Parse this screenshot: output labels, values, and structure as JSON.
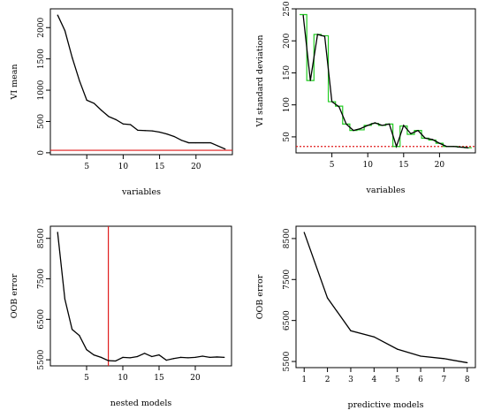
{
  "chart_data": [
    {
      "type": "line",
      "xlabel": "variables",
      "ylabel": "VI mean",
      "xlim": [
        0,
        25
      ],
      "ylim": [
        -30,
        2300
      ],
      "xticks": [
        5,
        10,
        15,
        20
      ],
      "yticks": [
        0,
        500,
        1000,
        1500,
        2000
      ],
      "series": [
        {
          "x": [
            1,
            2,
            3,
            4,
            5,
            6,
            7,
            8,
            9,
            10,
            11,
            12,
            13,
            14,
            15,
            16,
            17,
            18,
            19,
            20,
            21,
            22,
            23,
            24
          ],
          "values": [
            2200,
            1950,
            1520,
            1150,
            840,
            790,
            680,
            580,
            530,
            460,
            450,
            360,
            355,
            350,
            330,
            300,
            260,
            200,
            160,
            160,
            160,
            160,
            110,
            60
          ]
        }
      ],
      "hlines": [
        {
          "y": 40,
          "color": "#e01b1b",
          "style": "solid"
        }
      ]
    },
    {
      "type": "line",
      "xlabel": "variables",
      "ylabel": "VI standard deviation",
      "xlim": [
        0,
        25
      ],
      "ylim": [
        25,
        250
      ],
      "xticks": [
        5,
        10,
        15,
        20
      ],
      "yticks": [
        50,
        100,
        150,
        200,
        250
      ],
      "series": [
        {
          "x": [
            1,
            2,
            3,
            4,
            5,
            6,
            7,
            8,
            9,
            10,
            11,
            12,
            13,
            14,
            15,
            16,
            17,
            18,
            19,
            20,
            21,
            22,
            23,
            24
          ],
          "values": [
            240,
            138,
            210,
            207,
            105,
            97,
            70,
            60,
            63,
            68,
            72,
            68,
            70,
            35,
            68,
            55,
            60,
            48,
            46,
            40,
            35,
            35,
            34,
            33
          ]
        }
      ],
      "step_series": {
        "color": "#22cc22",
        "x": [
          1,
          2,
          3,
          4,
          5,
          6,
          7,
          8,
          9,
          10,
          11,
          12,
          13,
          14,
          15,
          16,
          17,
          18,
          19,
          20,
          21,
          22,
          23,
          24
        ],
        "values": [
          241,
          138,
          210,
          208,
          105,
          98,
          70,
          60,
          61,
          68,
          71,
          68,
          70,
          35,
          67,
          54,
          60,
          48,
          45,
          40,
          35,
          35,
          34,
          33
        ]
      },
      "hlines": [
        {
          "y": 35,
          "color": "#e01b1b",
          "style": "dotted"
        }
      ]
    },
    {
      "type": "line",
      "xlabel": "nested models",
      "ylabel": "OOB error",
      "xlim": [
        0,
        25
      ],
      "ylim": [
        5350,
        8800
      ],
      "xticks": [
        5,
        10,
        15,
        20
      ],
      "yticks": [
        5500,
        6500,
        7500,
        8500
      ],
      "series": [
        {
          "x": [
            1,
            2,
            3,
            4,
            5,
            6,
            7,
            8,
            9,
            10,
            11,
            12,
            13,
            14,
            15,
            16,
            17,
            18,
            19,
            20,
            21,
            22,
            23,
            24
          ],
          "values": [
            8650,
            7000,
            6250,
            6100,
            5750,
            5620,
            5560,
            5480,
            5470,
            5560,
            5550,
            5580,
            5660,
            5580,
            5620,
            5490,
            5530,
            5560,
            5550,
            5560,
            5590,
            5560,
            5570,
            5560
          ]
        }
      ],
      "vlines": [
        {
          "x": 8,
          "color": "#e01b1b",
          "style": "solid"
        }
      ]
    },
    {
      "type": "line",
      "xlabel": "predictive models",
      "ylabel": "OOB error",
      "xlim": [
        0.65,
        8.35
      ],
      "ylim": [
        5350,
        8800
      ],
      "xticks": [
        1,
        2,
        3,
        4,
        5,
        6,
        7,
        8
      ],
      "yticks": [
        5500,
        6500,
        7500,
        8500
      ],
      "series": [
        {
          "x": [
            1,
            2,
            3,
            4,
            5,
            6,
            7,
            8
          ],
          "values": [
            8650,
            7050,
            6250,
            6100,
            5800,
            5630,
            5570,
            5470
          ]
        }
      ]
    }
  ]
}
